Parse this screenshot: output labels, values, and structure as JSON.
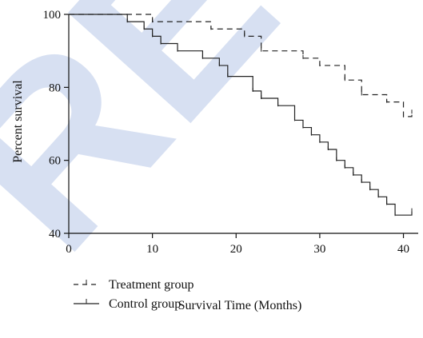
{
  "chart_data": {
    "type": "line",
    "subtype": "kaplan-meier-step",
    "xlabel": "Survival Time (Months)",
    "ylabel": "Percent survival",
    "xlim": [
      0,
      41
    ],
    "ylim": [
      40,
      100
    ],
    "xticks": [
      0,
      10,
      20,
      30,
      40
    ],
    "yticks": [
      40,
      60,
      80,
      100
    ],
    "grid": false,
    "legend_position": "bottom-left",
    "watermark_text": "RETRACTED",
    "watermark_color": "#d7e0f2",
    "series": [
      {
        "name": "Treatment group",
        "style": "dashed",
        "color": "#222222",
        "x": [
          0,
          10,
          17,
          21,
          23,
          28,
          30,
          33,
          35,
          38,
          40,
          41
        ],
        "y": [
          100,
          98,
          96,
          94,
          90,
          88,
          86,
          82,
          78,
          76,
          72,
          73
        ]
      },
      {
        "name": "Control group",
        "style": "solid",
        "color": "#222222",
        "x": [
          0,
          7,
          9,
          10,
          11,
          13,
          16,
          18,
          19,
          22,
          23,
          25,
          27,
          28,
          29,
          30,
          31,
          32,
          33,
          34,
          35,
          36,
          37,
          38,
          39,
          41
        ],
        "y": [
          100,
          98,
          96,
          94,
          92,
          90,
          88,
          86,
          83,
          79,
          77,
          75,
          71,
          69,
          67,
          65,
          63,
          60,
          58,
          56,
          54,
          52,
          50,
          48,
          45,
          46
        ]
      }
    ]
  }
}
